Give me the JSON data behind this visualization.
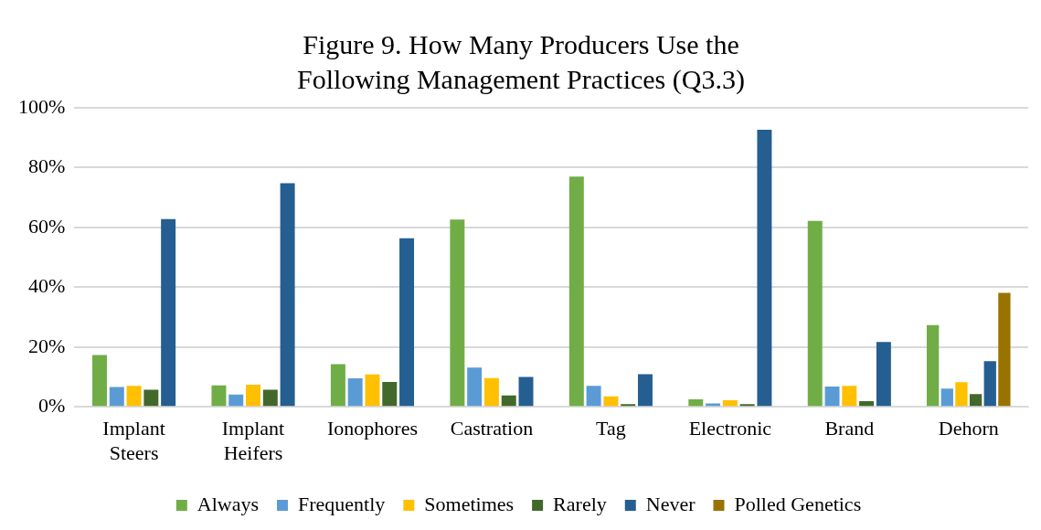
{
  "chart_data": {
    "type": "bar",
    "title": "Figure 9. How Many Producers Use the Following Management Practices (Q3.3)",
    "categories": [
      "Implant Steers",
      "Implant Heifers",
      "Ionophores",
      "Castration",
      "Tag",
      "Electronic",
      "Brand",
      "Dehorn"
    ],
    "series": [
      {
        "name": "Always",
        "color": "#70ad47",
        "values": [
          17.3,
          7.2,
          14.3,
          62.6,
          77.0,
          2.5,
          62.2,
          27.3
        ]
      },
      {
        "name": "Frequently",
        "color": "#5b9bd5",
        "values": [
          6.6,
          4.1,
          9.5,
          13.1,
          7.0,
          1.1,
          6.8,
          6.1
        ]
      },
      {
        "name": "Sometimes",
        "color": "#ffc000",
        "values": [
          7.0,
          7.4,
          10.8,
          9.6,
          3.5,
          2.2,
          7.0,
          8.2
        ]
      },
      {
        "name": "Rarely",
        "color": "#43682b",
        "values": [
          5.7,
          5.7,
          8.3,
          3.8,
          0.9,
          0.9,
          1.9,
          4.3
        ]
      },
      {
        "name": "Never",
        "color": "#255e91",
        "values": [
          62.8,
          74.8,
          56.4,
          10.0,
          10.9,
          92.7,
          21.7,
          15.3
        ]
      },
      {
        "name": "Polled Genetics",
        "color": "#997300",
        "values": [
          null,
          null,
          null,
          null,
          null,
          null,
          null,
          38.1
        ]
      }
    ],
    "ylim": [
      0,
      100
    ],
    "yticks": [
      {
        "value": 0,
        "label": "0%"
      },
      {
        "value": 20,
        "label": "20%"
      },
      {
        "value": 40,
        "label": "40%"
      },
      {
        "value": 60,
        "label": "60%"
      },
      {
        "value": 80,
        "label": "80%"
      },
      {
        "value": 100,
        "label": "100%"
      }
    ],
    "grid": "y",
    "legend": "bottom"
  }
}
